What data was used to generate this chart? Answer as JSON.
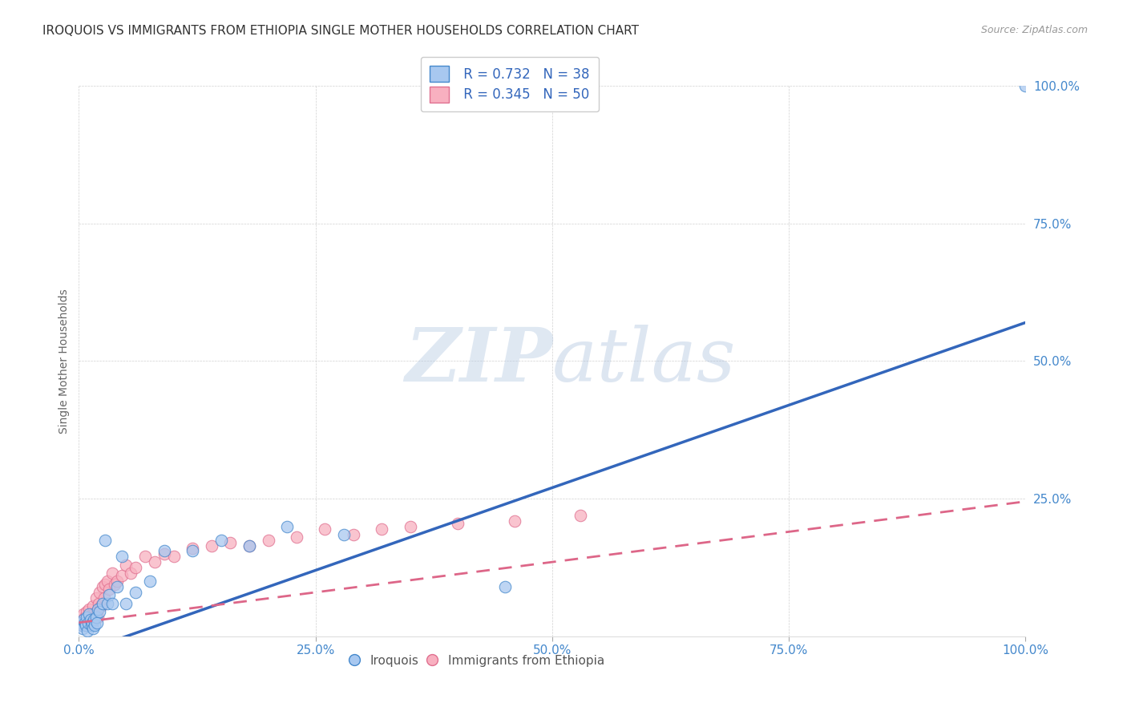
{
  "title": "IROQUOIS VS IMMIGRANTS FROM ETHIOPIA SINGLE MOTHER HOUSEHOLDS CORRELATION CHART",
  "source": "Source: ZipAtlas.com",
  "ylabel": "Single Mother Households",
  "xlim": [
    0,
    1.0
  ],
  "ylim": [
    0,
    1.0
  ],
  "xticks": [
    0.0,
    0.25,
    0.5,
    0.75,
    1.0
  ],
  "yticks": [
    0.0,
    0.25,
    0.5,
    0.75,
    1.0
  ],
  "xticklabels": [
    "0.0%",
    "25.0%",
    "50.0%",
    "75.0%",
    "100.0%"
  ],
  "yticklabels": [
    "",
    "25.0%",
    "50.0%",
    "75.0%",
    "100.0%"
  ],
  "legend_r1": "R = 0.732",
  "legend_n1": "N = 38",
  "legend_r2": "R = 0.345",
  "legend_n2": "N = 50",
  "blue_fill": "#A8C8F0",
  "blue_edge": "#4488CC",
  "pink_fill": "#F8B0C0",
  "pink_edge": "#E07090",
  "blue_line": "#3366BB",
  "pink_line": "#DD6688",
  "watermark_color": "#C8D8EE",
  "iroquois_x": [
    0.002,
    0.003,
    0.004,
    0.005,
    0.006,
    0.007,
    0.008,
    0.009,
    0.01,
    0.011,
    0.012,
    0.013,
    0.014,
    0.015,
    0.016,
    0.017,
    0.018,
    0.019,
    0.02,
    0.022,
    0.025,
    0.028,
    0.03,
    0.032,
    0.035,
    0.04,
    0.045,
    0.05,
    0.06,
    0.075,
    0.09,
    0.12,
    0.15,
    0.18,
    0.22,
    0.28,
    0.45,
    1.0
  ],
  "iroquois_y": [
    0.025,
    0.02,
    0.015,
    0.03,
    0.025,
    0.02,
    0.035,
    0.01,
    0.025,
    0.04,
    0.03,
    0.02,
    0.025,
    0.015,
    0.03,
    0.02,
    0.035,
    0.025,
    0.05,
    0.045,
    0.06,
    0.175,
    0.06,
    0.075,
    0.06,
    0.09,
    0.145,
    0.06,
    0.08,
    0.1,
    0.155,
    0.155,
    0.175,
    0.165,
    0.2,
    0.185,
    0.09,
    1.0
  ],
  "ethiopia_x": [
    0.003,
    0.004,
    0.005,
    0.006,
    0.007,
    0.008,
    0.009,
    0.01,
    0.011,
    0.012,
    0.013,
    0.014,
    0.015,
    0.016,
    0.017,
    0.018,
    0.019,
    0.02,
    0.021,
    0.022,
    0.023,
    0.025,
    0.027,
    0.028,
    0.03,
    0.032,
    0.035,
    0.038,
    0.04,
    0.045,
    0.05,
    0.055,
    0.06,
    0.07,
    0.08,
    0.09,
    0.1,
    0.12,
    0.14,
    0.16,
    0.18,
    0.2,
    0.23,
    0.26,
    0.29,
    0.32,
    0.35,
    0.4,
    0.46,
    0.53
  ],
  "ethiopia_y": [
    0.025,
    0.02,
    0.04,
    0.035,
    0.03,
    0.045,
    0.025,
    0.03,
    0.05,
    0.035,
    0.025,
    0.04,
    0.055,
    0.04,
    0.035,
    0.07,
    0.045,
    0.035,
    0.06,
    0.08,
    0.055,
    0.09,
    0.07,
    0.095,
    0.1,
    0.085,
    0.115,
    0.095,
    0.1,
    0.11,
    0.13,
    0.115,
    0.125,
    0.145,
    0.135,
    0.15,
    0.145,
    0.16,
    0.165,
    0.17,
    0.165,
    0.175,
    0.18,
    0.195,
    0.185,
    0.195,
    0.2,
    0.205,
    0.21,
    0.22
  ]
}
